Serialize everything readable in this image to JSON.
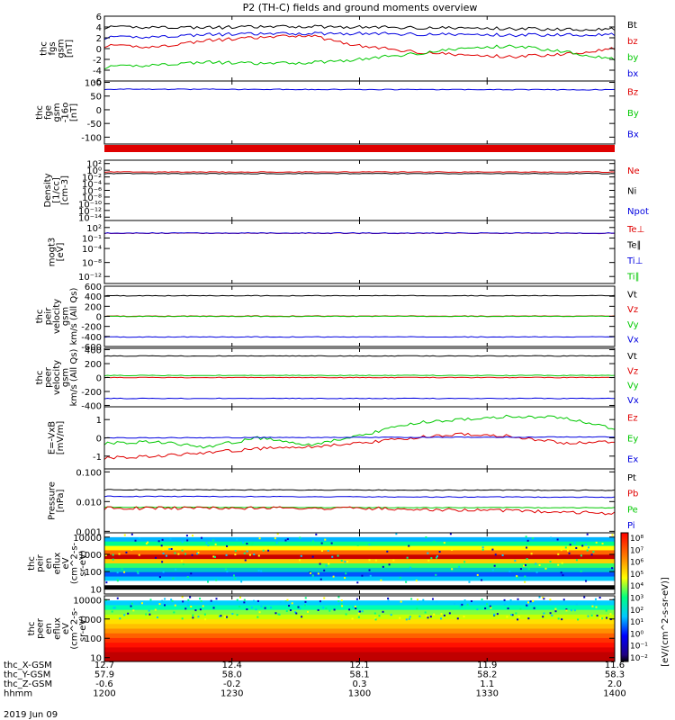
{
  "title": "P2 (TH-C) fields and ground moments overview",
  "footer": {
    "rows": [
      {
        "label": "thc_X-GSM",
        "values": [
          "12.7",
          "12.4",
          "12.1",
          "11.9",
          "11.6"
        ]
      },
      {
        "label": "thc_Y-GSM",
        "values": [
          "57.9",
          "58.0",
          "58.1",
          "58.2",
          "58.3"
        ]
      },
      {
        "label": "thc_Z-GSM",
        "values": [
          "-0.6",
          "-0.2",
          "0.3",
          "1.1",
          "2.0"
        ]
      },
      {
        "label": "hhmm",
        "values": [
          "1200",
          "1230",
          "1300",
          "1330",
          "1400"
        ]
      }
    ],
    "date": "2019 Jun 09"
  },
  "colors": {
    "black": "#000000",
    "red": "#e00000",
    "green": "#00c800",
    "blue": "#0000e0"
  },
  "chart_data": [
    {
      "type": "line",
      "ylabel": [
        "thc",
        "fgs",
        "gsm",
        "[nT]"
      ],
      "ylim": [
        -6,
        6
      ],
      "yticks": [
        "6",
        "4",
        "2",
        "0",
        "-2",
        "-4",
        "-6"
      ],
      "yticks_vals": [
        6,
        4,
        2,
        0,
        -2,
        -4,
        -6
      ],
      "legend": [
        {
          "name": "Bt",
          "color": "black"
        },
        {
          "name": "bz",
          "color": "red"
        },
        {
          "name": "by",
          "color": "green"
        },
        {
          "name": "bx",
          "color": "blue"
        }
      ],
      "series": [
        {
          "name": "Bt",
          "color": "black",
          "x": [
            0,
            0.1,
            0.2,
            0.3,
            0.4,
            0.5,
            0.6,
            0.7,
            0.8,
            0.9,
            1
          ],
          "values": [
            3.9,
            4.0,
            3.9,
            4.0,
            4.1,
            4.0,
            3.9,
            3.8,
            3.7,
            3.6,
            3.6
          ]
        },
        {
          "name": "bz",
          "color": "red",
          "x": [
            0,
            0.1,
            0.2,
            0.3,
            0.4,
            0.5,
            0.6,
            0.7,
            0.8,
            0.9,
            1
          ],
          "values": [
            0.5,
            0.3,
            1.5,
            2.0,
            2.5,
            0.5,
            -0.5,
            -1.2,
            -1.5,
            -1.0,
            0
          ]
        },
        {
          "name": "by",
          "color": "green",
          "x": [
            0,
            0.1,
            0.2,
            0.3,
            0.4,
            0.5,
            0.6,
            0.7,
            0.8,
            0.9,
            1
          ],
          "values": [
            -3.5,
            -3.0,
            -2.5,
            -2.8,
            -2.6,
            -2.0,
            -1.0,
            0.0,
            0.5,
            -0.5,
            -2.0
          ]
        },
        {
          "name": "bx",
          "color": "blue",
          "x": [
            0,
            0.1,
            0.2,
            0.3,
            0.4,
            0.5,
            0.6,
            0.7,
            0.8,
            0.9,
            1
          ],
          "values": [
            2.0,
            2.2,
            2.6,
            2.7,
            2.8,
            2.8,
            2.7,
            2.6,
            2.5,
            2.6,
            2.6
          ]
        }
      ]
    },
    {
      "type": "line",
      "ylabel": [
        "thc",
        "fge",
        "gsm",
        "-16o",
        "[nT]"
      ],
      "ylim": [
        -125,
        105
      ],
      "yticks": [
        "100",
        "50",
        "0",
        "-50",
        "-100"
      ],
      "yticks_vals": [
        100,
        50,
        0,
        -50,
        -100
      ],
      "legend": [
        {
          "name": "Bz",
          "color": "red"
        },
        {
          "name": "By",
          "color": "green"
        },
        {
          "name": "Bx",
          "color": "blue"
        }
      ],
      "series": [
        {
          "name": "Bx",
          "color": "blue",
          "x": [
            0,
            0.5,
            1
          ],
          "values": [
            75,
            74,
            73
          ]
        }
      ]
    },
    {
      "type": "line",
      "ylabel": [
        "Density",
        "[1/cc]",
        "[cm-3]"
      ],
      "yscale": "log",
      "ylim": [
        -15,
        3
      ],
      "yticks": [
        "10²",
        "10⁰",
        "10⁻²",
        "10⁻⁴",
        "10⁻⁶",
        "10⁻⁸",
        "10⁻¹⁰",
        "10⁻¹²",
        "10⁻¹⁴"
      ],
      "yticks_vals": [
        2,
        0,
        -2,
        -4,
        -6,
        -8,
        -10,
        -12,
        -14
      ],
      "legend": [
        {
          "name": "Ne",
          "color": "red"
        },
        {
          "name": "Ni",
          "color": "black"
        },
        {
          "name": "Npot",
          "color": "blue"
        }
      ],
      "series": [
        {
          "name": "Ne",
          "color": "red",
          "x": [
            0,
            1
          ],
          "values": [
            0.3,
            0.3
          ]
        },
        {
          "name": "Ni",
          "color": "black",
          "x": [
            0,
            1
          ],
          "values": [
            0.1,
            0.1
          ]
        },
        {
          "name": "Npot",
          "color": "blue",
          "x": [
            0,
            1
          ],
          "values": [
            -0.1,
            -0.1
          ]
        }
      ]
    },
    {
      "type": "line",
      "ylabel": [
        "mogt3",
        "[eV]"
      ],
      "yscale": "log",
      "ylim": [
        -14,
        4
      ],
      "yticks": [
        "10²",
        "10⁻¹",
        "10⁻⁴",
        "10⁻⁸",
        "10⁻¹²"
      ],
      "yticks_vals": [
        2,
        -1,
        -4,
        -8,
        -12
      ],
      "legend": [
        {
          "name": "Te⊥",
          "color": "red"
        },
        {
          "name": "Te∥",
          "color": "black"
        },
        {
          "name": "Ti⊥",
          "color": "blue"
        },
        {
          "name": "Ti∥",
          "color": "green"
        }
      ],
      "series": [
        {
          "name": "Te⊥",
          "color": "red",
          "x": [
            0,
            1
          ],
          "values": [
            2.3,
            2.3
          ]
        },
        {
          "name": "Ti⊥",
          "color": "blue",
          "x": [
            0,
            1
          ],
          "values": [
            2.6,
            2.6
          ]
        }
      ]
    },
    {
      "type": "line",
      "ylabel": [
        "thc",
        "peir",
        "velocity",
        "gsm",
        "km/s (All Qs)"
      ],
      "ylim": [
        -600,
        600
      ],
      "yticks": [
        "600",
        "400",
        "200",
        "0",
        "-200",
        "-400",
        "-600"
      ],
      "yticks_vals": [
        600,
        400,
        200,
        0,
        -200,
        -400,
        -600
      ],
      "legend": [
        {
          "name": "Vt",
          "color": "black"
        },
        {
          "name": "Vz",
          "color": "red"
        },
        {
          "name": "Vy",
          "color": "green"
        },
        {
          "name": "Vx",
          "color": "blue"
        }
      ],
      "series": [
        {
          "name": "Vt",
          "color": "black",
          "x": [
            0,
            1
          ],
          "values": [
            410,
            410
          ]
        },
        {
          "name": "Vz",
          "color": "red",
          "x": [
            0,
            1
          ],
          "values": [
            5,
            5
          ]
        },
        {
          "name": "Vy",
          "color": "green",
          "x": [
            0,
            1
          ],
          "values": [
            0,
            0
          ]
        },
        {
          "name": "Vx",
          "color": "blue",
          "x": [
            0,
            1
          ],
          "values": [
            -410,
            -410
          ]
        }
      ]
    },
    {
      "type": "line",
      "ylabel": [
        "thc",
        "peer",
        "velocity",
        "gsm",
        "km/s (All Qs)"
      ],
      "ylim": [
        -420,
        420
      ],
      "yticks": [
        "400",
        "200",
        "0",
        "-200",
        "-400"
      ],
      "yticks_vals": [
        400,
        200,
        0,
        -200,
        -400
      ],
      "legend": [
        {
          "name": "Vt",
          "color": "black"
        },
        {
          "name": "Vz",
          "color": "red"
        },
        {
          "name": "Vy",
          "color": "green"
        },
        {
          "name": "Vx",
          "color": "blue"
        }
      ],
      "series": [
        {
          "name": "Vt",
          "color": "black",
          "x": [
            0,
            1
          ],
          "values": [
            310,
            310
          ]
        },
        {
          "name": "Vz",
          "color": "red",
          "x": [
            0,
            1
          ],
          "values": [
            0,
            0
          ]
        },
        {
          "name": "Vy",
          "color": "green",
          "x": [
            0,
            1
          ],
          "values": [
            30,
            30
          ]
        },
        {
          "name": "Vx",
          "color": "blue",
          "x": [
            0,
            1
          ],
          "values": [
            -300,
            -300
          ]
        }
      ]
    },
    {
      "type": "line",
      "ylabel": [
        "E=-VxB",
        "[mV/m]"
      ],
      "ylim": [
        -1.7,
        1.7
      ],
      "yticks": [
        "1",
        "0",
        "-1"
      ],
      "yticks_vals": [
        1,
        0,
        -1
      ],
      "legend": [
        {
          "name": "Ez",
          "color": "red"
        },
        {
          "name": "Ey",
          "color": "green"
        },
        {
          "name": "Ex",
          "color": "blue"
        }
      ],
      "series": [
        {
          "name": "Ez",
          "color": "red",
          "x": [
            0,
            0.1,
            0.2,
            0.3,
            0.4,
            0.5,
            0.6,
            0.7,
            0.8,
            0.9,
            1
          ],
          "values": [
            -1.1,
            -1.0,
            -0.8,
            -0.6,
            -0.5,
            -0.3,
            0.0,
            0.2,
            0.1,
            -0.3,
            -0.2
          ]
        },
        {
          "name": "Ey",
          "color": "green",
          "x": [
            0,
            0.1,
            0.2,
            0.3,
            0.4,
            0.5,
            0.6,
            0.7,
            0.8,
            0.9,
            1
          ],
          "values": [
            -0.3,
            -0.2,
            -0.5,
            0.0,
            -0.4,
            0.1,
            0.8,
            1.0,
            1.2,
            1.1,
            0.5
          ]
        },
        {
          "name": "Ex",
          "color": "blue",
          "x": [
            0,
            1
          ],
          "values": [
            0.0,
            0.05
          ]
        }
      ]
    },
    {
      "type": "line",
      "ylabel": [
        "Pressure",
        "[nPa]"
      ],
      "yscale": "log",
      "ylim": [
        -3.05,
        -0.9
      ],
      "yticks": [
        "0.100",
        "0.010",
        "0.001"
      ],
      "yticks_vals": [
        -1,
        -2,
        -3
      ],
      "legend": [
        {
          "name": "Pt",
          "color": "black"
        },
        {
          "name": "Pb",
          "color": "red"
        },
        {
          "name": "Pe",
          "color": "green"
        },
        {
          "name": "Pi",
          "color": "blue"
        }
      ],
      "series": [
        {
          "name": "Pt",
          "color": "black",
          "x": [
            0,
            1
          ],
          "values": [
            0.025,
            0.024
          ]
        },
        {
          "name": "Pi",
          "color": "blue",
          "x": [
            0,
            1
          ],
          "values": [
            0.015,
            0.014
          ]
        },
        {
          "name": "Pe",
          "color": "green",
          "x": [
            0,
            1
          ],
          "values": [
            0.0065,
            0.0062
          ]
        },
        {
          "name": "Pb",
          "color": "red",
          "x": [
            0,
            0.5,
            0.9,
            1
          ],
          "values": [
            0.006,
            0.006,
            0.0045,
            0.004
          ]
        }
      ]
    },
    {
      "type": "heatmap",
      "ylabel": [
        "thc",
        "peir",
        "en",
        "eflux",
        "eV",
        "(cm^2-s-",
        "sr-eV)"
      ],
      "yscale": "log",
      "ylim": [
        0.7,
        4.25
      ],
      "yticks": [
        "10000",
        "1000",
        "100",
        "10"
      ],
      "yticks_vals": [
        4,
        3,
        2,
        1
      ]
    },
    {
      "type": "heatmap",
      "ylabel": [
        "thc",
        "peer",
        "en",
        "eflux",
        "eV",
        "(cm^2-s-",
        "sr-eV)"
      ],
      "yscale": "log",
      "ylim": [
        0.8,
        4.2
      ],
      "yticks": [
        "10000",
        "1000",
        "100",
        "10"
      ],
      "yticks_vals": [
        4,
        3,
        2,
        1
      ],
      "colorbar": {
        "label": "[eV/(cm^2-s-sr-eV)]",
        "ticks": [
          "10⁸",
          "10⁷",
          "10⁶",
          "10⁵",
          "10⁴",
          "10³",
          "10²",
          "10¹",
          "10⁰",
          "10⁻¹",
          "10⁻²"
        ]
      }
    }
  ]
}
